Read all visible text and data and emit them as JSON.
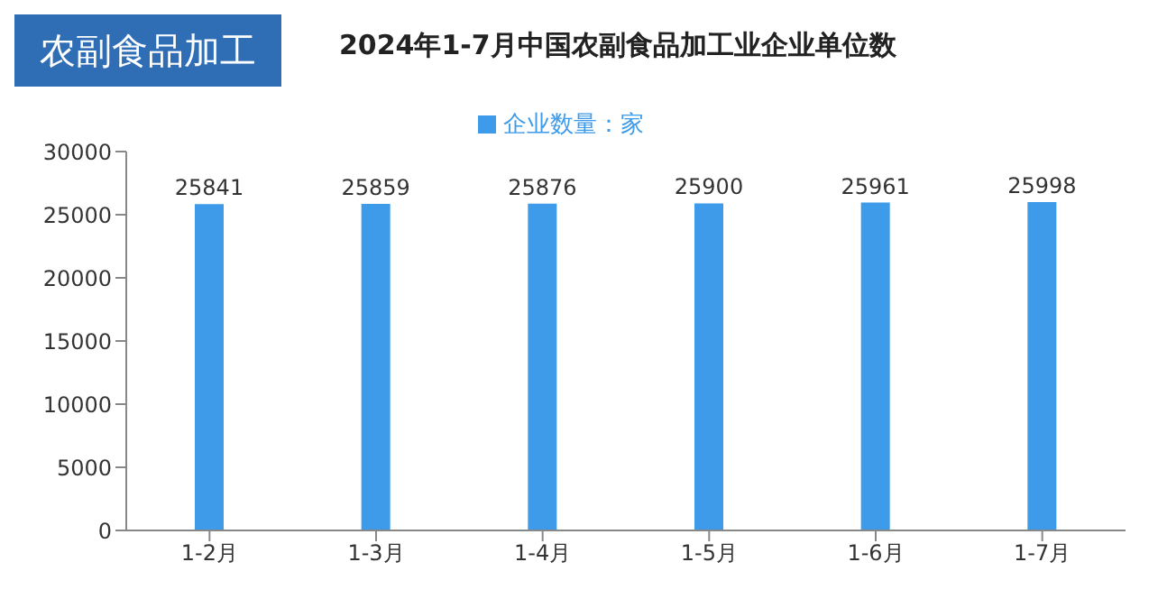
{
  "chart_data": {
    "type": "bar",
    "title": "2024年1-7月中国农副食品加工业企业单位数",
    "annotations": [
      "农副食品加工"
    ],
    "categories": [
      "1-2月",
      "1-3月",
      "1-4月",
      "1-5月",
      "1-6月",
      "1-7月"
    ],
    "series": [
      {
        "name": "企业数量：家",
        "color": "#3d9be9",
        "values": [
          25841,
          25859,
          25876,
          25900,
          25961,
          25998
        ]
      }
    ],
    "ylim": [
      0,
      30000
    ],
    "yticks": [
      0,
      5000,
      10000,
      15000,
      20000,
      25000,
      30000
    ],
    "grid": false,
    "legend": "top",
    "data_labels": true
  }
}
